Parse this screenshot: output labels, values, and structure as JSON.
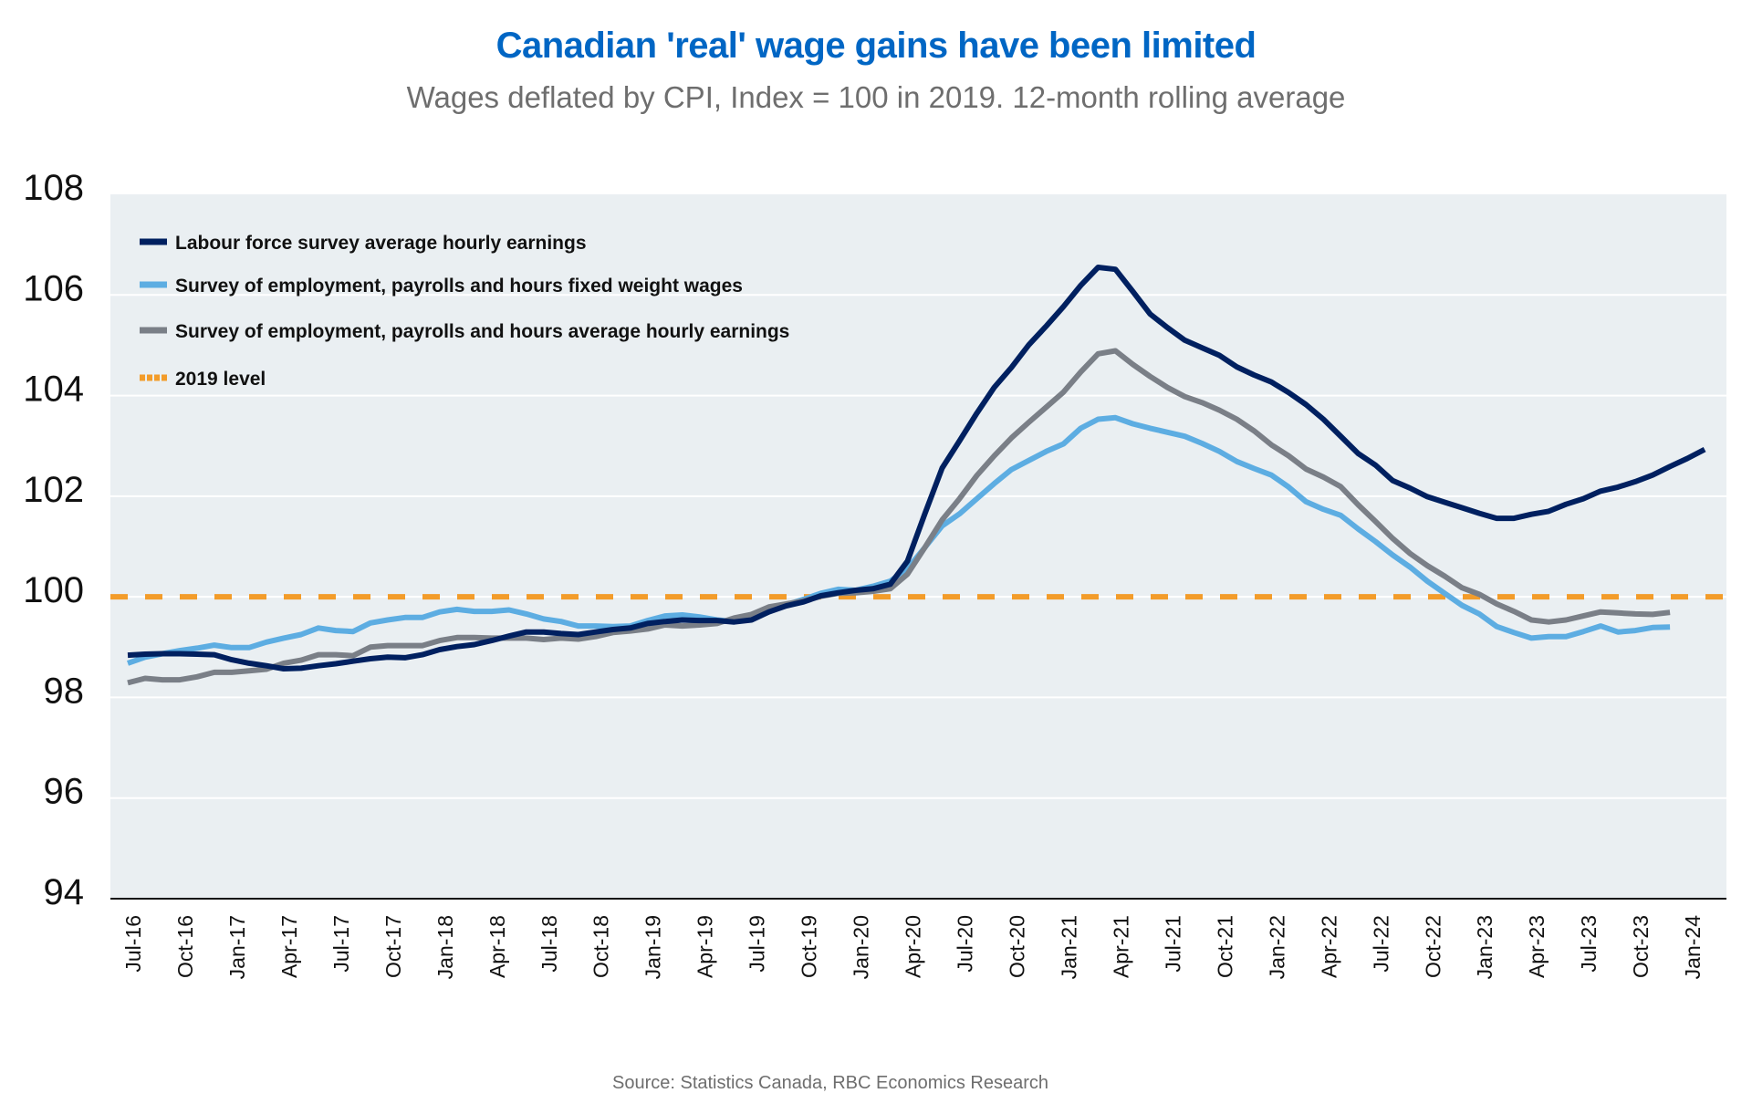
{
  "chart_data": {
    "type": "line",
    "title": "Canadian 'real' wage gains have been limited",
    "subtitle": "Wages deflated by CPI, Index = 100 in 2019. 12-month rolling average",
    "source": "Source: Statistics Canada, RBC Economics Research",
    "xlabel": "",
    "ylabel": "",
    "ylim": [
      94,
      108
    ],
    "yticks": [
      "94",
      "96",
      "98",
      "100",
      "102",
      "104",
      "106",
      "108"
    ],
    "ytick_values": [
      94,
      96,
      98,
      100,
      102,
      104,
      106,
      108
    ],
    "grid": true,
    "legend_position": "top-left",
    "x_start": "Jul-16",
    "x_frequency": "monthly",
    "x_count": 92,
    "xtick_labels": [
      "Jul-16",
      "Oct-16",
      "Jan-17",
      "Apr-17",
      "Jul-17",
      "Oct-17",
      "Jan-18",
      "Apr-18",
      "Jul-18",
      "Oct-18",
      "Jan-19",
      "Apr-19",
      "Jul-19",
      "Oct-19",
      "Jan-20",
      "Apr-20",
      "Jul-20",
      "Oct-20",
      "Jan-21",
      "Apr-21",
      "Jul-21",
      "Oct-21",
      "Jan-22",
      "Apr-22",
      "Jul-22",
      "Oct-22",
      "Jan-23",
      "Apr-23",
      "Jul-23",
      "Oct-23",
      "Jan-24"
    ],
    "xtick_every": 3,
    "series": [
      {
        "name": "Labour force survey average hourly earnings",
        "color": "#002060",
        "style": "solid",
        "values": [
          98.84,
          98.86,
          98.87,
          98.87,
          98.86,
          98.85,
          98.75,
          98.68,
          98.63,
          98.57,
          98.58,
          98.63,
          98.67,
          98.72,
          98.77,
          98.8,
          98.79,
          98.85,
          98.95,
          99.01,
          99.05,
          99.13,
          99.22,
          99.3,
          99.3,
          99.27,
          99.25,
          99.3,
          99.35,
          99.38,
          99.47,
          99.51,
          99.54,
          99.53,
          99.53,
          99.5,
          99.54,
          99.7,
          99.82,
          99.9,
          100.02,
          100.08,
          100.13,
          100.16,
          100.25,
          100.71,
          101.65,
          102.56,
          103.1,
          103.65,
          104.16,
          104.56,
          105.01,
          105.38,
          105.77,
          106.19,
          106.55,
          106.51,
          106.07,
          105.62,
          105.35,
          105.1,
          104.95,
          104.8,
          104.57,
          104.41,
          104.27,
          104.06,
          103.82,
          103.53,
          103.19,
          102.85,
          102.62,
          102.31,
          102.16,
          101.99,
          101.88,
          101.77,
          101.66,
          101.56,
          101.56,
          101.64,
          101.7,
          101.84,
          101.95,
          102.1,
          102.18,
          102.29,
          102.42,
          102.59,
          102.75,
          102.93
        ]
      },
      {
        "name": "Survey of employment, payrolls and hours fixed weight wages",
        "color": "#5DADE2",
        "style": "solid",
        "values": [
          98.68,
          98.8,
          98.87,
          98.93,
          98.98,
          99.04,
          98.99,
          98.99,
          99.1,
          99.18,
          99.25,
          99.38,
          99.33,
          99.31,
          99.48,
          99.54,
          99.59,
          99.59,
          99.7,
          99.75,
          99.71,
          99.71,
          99.74,
          99.66,
          99.56,
          99.51,
          99.42,
          99.42,
          99.41,
          99.42,
          99.53,
          99.62,
          99.64,
          99.6,
          99.54,
          99.51,
          99.56,
          99.71,
          99.84,
          99.95,
          100.07,
          100.15,
          100.13,
          100.21,
          100.31,
          100.56,
          100.98,
          101.41,
          101.65,
          101.95,
          102.25,
          102.53,
          102.71,
          102.89,
          103.04,
          103.35,
          103.53,
          103.56,
          103.44,
          103.35,
          103.27,
          103.19,
          103.05,
          102.89,
          102.69,
          102.55,
          102.42,
          102.18,
          101.89,
          101.74,
          101.62,
          101.35,
          101.1,
          100.83,
          100.59,
          100.31,
          100.07,
          99.83,
          99.66,
          99.41,
          99.29,
          99.18,
          99.21,
          99.21,
          99.31,
          99.42,
          99.3,
          99.33,
          99.39,
          99.4
        ]
      },
      {
        "name": "Survey of employment, payrolls and hours average hourly earnings",
        "color": "#7A7F87",
        "style": "solid",
        "values": [
          98.29,
          98.38,
          98.35,
          98.35,
          98.41,
          98.5,
          98.5,
          98.53,
          98.56,
          98.68,
          98.74,
          98.85,
          98.85,
          98.83,
          99.0,
          99.03,
          99.03,
          99.03,
          99.13,
          99.19,
          99.19,
          99.18,
          99.18,
          99.18,
          99.15,
          99.18,
          99.16,
          99.21,
          99.29,
          99.32,
          99.36,
          99.44,
          99.42,
          99.44,
          99.47,
          99.58,
          99.65,
          99.8,
          99.86,
          99.92,
          100.01,
          100.07,
          100.08,
          100.11,
          100.16,
          100.45,
          100.98,
          101.53,
          101.95,
          102.41,
          102.8,
          103.16,
          103.47,
          103.77,
          104.07,
          104.47,
          104.83,
          104.89,
          104.62,
          104.38,
          104.16,
          103.98,
          103.86,
          103.71,
          103.53,
          103.3,
          103.02,
          102.8,
          102.54,
          102.38,
          102.19,
          101.83,
          101.5,
          101.16,
          100.86,
          100.62,
          100.41,
          100.18,
          100.05,
          99.86,
          99.71,
          99.54,
          99.5,
          99.54,
          99.62,
          99.7,
          99.68,
          99.66,
          99.65,
          99.69
        ]
      }
    ],
    "reference_line": {
      "name": "2019 level",
      "value": 100,
      "color": "#F39C2A",
      "style": "dashed"
    },
    "colors": {
      "title": "#0066C4",
      "plot_background": "#EAEFF2",
      "gridline": "#FFFFFF"
    }
  }
}
